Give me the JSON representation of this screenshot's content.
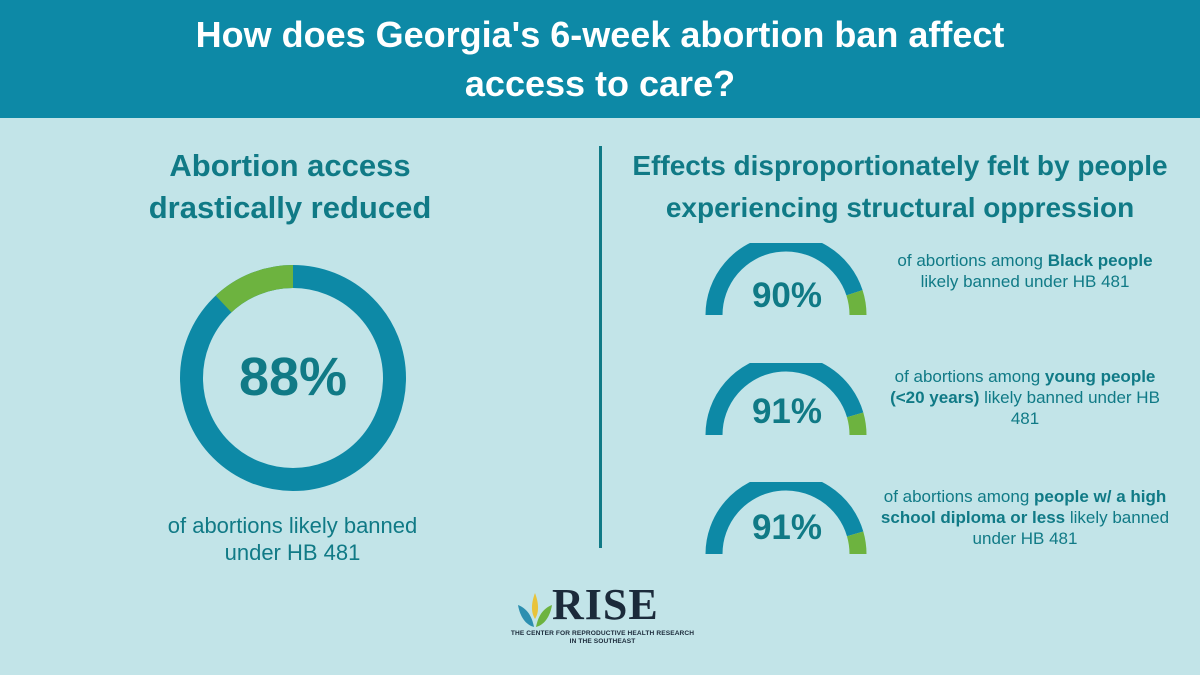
{
  "header": {
    "title": "How does Georgia's 6-week abortion ban affect access to care?"
  },
  "left_panel": {
    "heading": "Abortion access drastically reduced",
    "caption": "of abortions likely banned under HB 481"
  },
  "right_panel": {
    "heading": "Effects disproportionately felt by people experiencing structural oppression"
  },
  "chart_data": [
    {
      "type": "pie",
      "title": "Abortion access drastically reduced",
      "label": "88%",
      "caption": "of abortions likely banned under HB 481",
      "value": 88,
      "total": 100
    },
    {
      "type": "pie",
      "title": "Effects disproportionately felt by people experiencing structural oppression",
      "items": [
        {
          "label": "90%",
          "value": 90,
          "caption_pre": "of abortions among ",
          "caption_bold": "Black people",
          "caption_post": " likely banned under HB 481"
        },
        {
          "label": "91%",
          "value": 91,
          "caption_pre": "of abortions among ",
          "caption_bold": "young people (<20 years)",
          "caption_post": " likely banned under HB 481"
        },
        {
          "label": "91%",
          "value": 91,
          "caption_pre": "of abortions among ",
          "caption_bold": "people w/ a high school diploma or less",
          "caption_post": " likely banned under HB 481"
        }
      ]
    }
  ],
  "logo": {
    "name": "RISE",
    "subtitle": "THE CENTER FOR REPRODUCTIVE HEALTH RESEARCH IN THE SOUTHEAST"
  },
  "colors": {
    "header_bg": "#0d89a6",
    "page_bg": "#c2e4e8",
    "primary": "#0d89a6",
    "accent": "#6db33f",
    "text": "#107a86"
  }
}
